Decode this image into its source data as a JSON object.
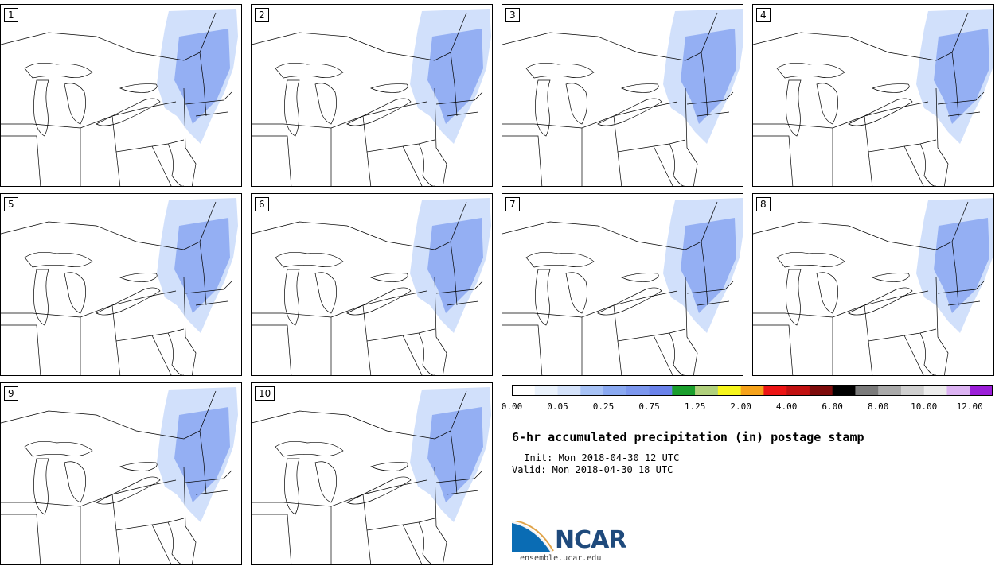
{
  "title": "6-hr accumulated precipitation (in) postage stamp",
  "init": " Init: Mon 2018-04-30 12 UTC",
  "valid": "Valid: Mon 2018-04-30 18 UTC",
  "logo": {
    "name": "NCAR",
    "url": "ensemble.ucar.edu"
  },
  "members": [
    "1",
    "2",
    "3",
    "4",
    "5",
    "6",
    "7",
    "8",
    "9",
    "10"
  ],
  "colorbar": {
    "colors": [
      "#ffffff",
      "#eaf2fc",
      "#d4e2fa",
      "#a7c2f5",
      "#8aa9f1",
      "#7c97ee",
      "#6a82ea",
      "#1a9e2c",
      "#b0d07c",
      "#f6f51c",
      "#f5a21a",
      "#ec1414",
      "#c11010",
      "#7d0b0b",
      "#000000",
      "#7a7a7a",
      "#a9a9a9",
      "#cfcfcf",
      "#ececec",
      "#dcb3f2",
      "#9b1ed8"
    ],
    "ticks": [
      {
        "label": "0.00",
        "i": 0
      },
      {
        "label": "0.05",
        "i": 2
      },
      {
        "label": "0.25",
        "i": 4
      },
      {
        "label": "0.75",
        "i": 6
      },
      {
        "label": "1.25",
        "i": 8
      },
      {
        "label": "2.00",
        "i": 10
      },
      {
        "label": "4.00",
        "i": 12
      },
      {
        "label": "6.00",
        "i": 14
      },
      {
        "label": "8.00",
        "i": 16
      },
      {
        "label": "10.00",
        "i": 18
      },
      {
        "label": "12.00",
        "i": 20
      }
    ]
  }
}
